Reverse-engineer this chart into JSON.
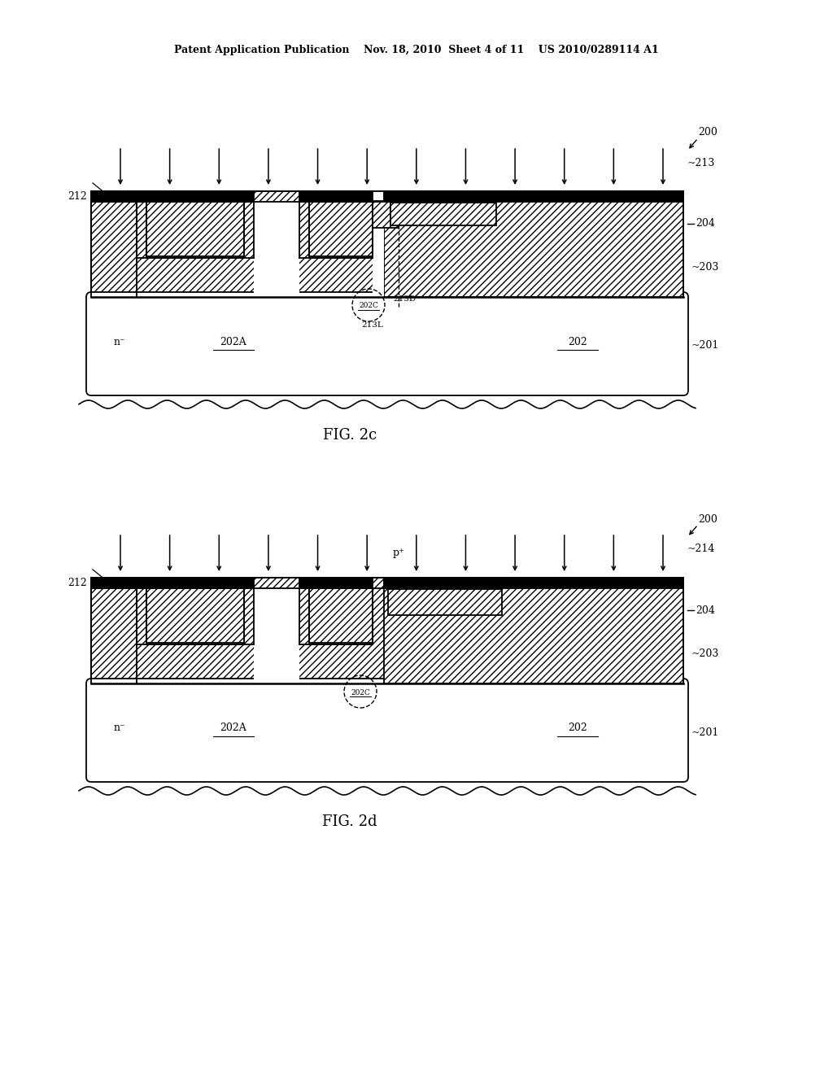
{
  "background_color": "#ffffff",
  "header_text": "Patent Application Publication    Nov. 18, 2010  Sheet 4 of 11    US 2010/0289114 A1",
  "fig_label_c": "FIG. 2c",
  "fig_label_d": "FIG. 2d",
  "line_color": "#000000"
}
